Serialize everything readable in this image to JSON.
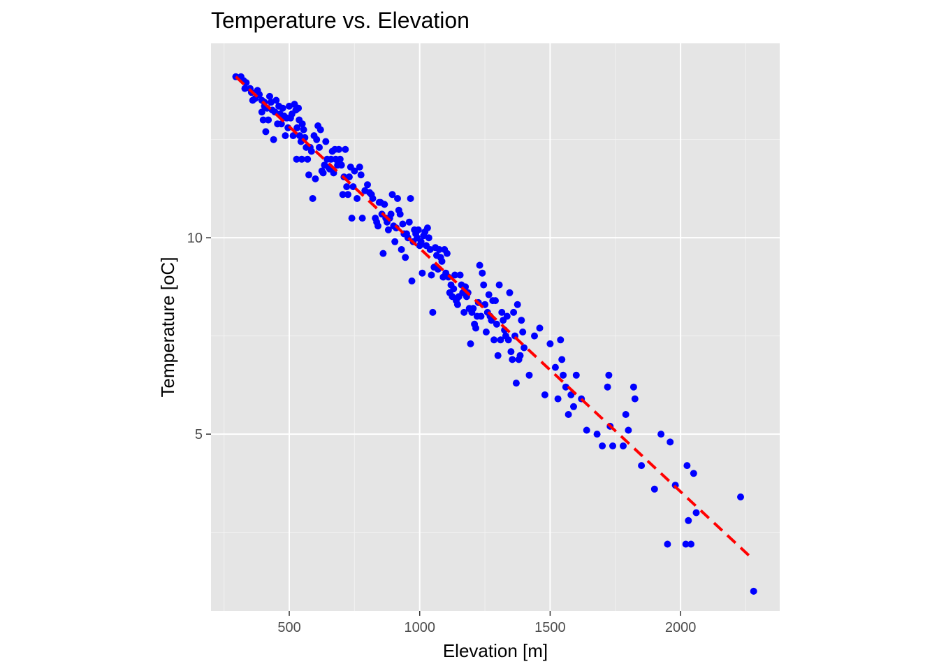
{
  "chart_data": {
    "type": "scatter",
    "title": "Temperature vs. Elevation",
    "xlabel": "Elevation [m]",
    "ylabel": "Temperature [oC]",
    "xlim": [
      200,
      2380
    ],
    "ylim": [
      0.5,
      14.95
    ],
    "x_ticks": [
      500,
      1000,
      1500,
      2000
    ],
    "x_tick_labels": [
      "500",
      "1000",
      "1500",
      "2000"
    ],
    "y_ticks": [
      5,
      10
    ],
    "y_tick_labels": [
      "5",
      "10"
    ],
    "grid": true,
    "panel_background": "#e5e5e5",
    "point_color": "#0000ff",
    "trend_line": {
      "color": "#ff0000",
      "style": "dashed",
      "x": [
        295,
        2280
      ],
      "y": [
        14.1,
        1.8
      ]
    },
    "points": [
      [
        295,
        14.1
      ],
      [
        315,
        14.1
      ],
      [
        325,
        14.0
      ],
      [
        330,
        13.8
      ],
      [
        335,
        13.95
      ],
      [
        350,
        13.8
      ],
      [
        355,
        13.7
      ],
      [
        360,
        13.5
      ],
      [
        370,
        13.55
      ],
      [
        378,
        13.75
      ],
      [
        385,
        13.65
      ],
      [
        395,
        13.5
      ],
      [
        395,
        13.2
      ],
      [
        400,
        13.0
      ],
      [
        405,
        13.45
      ],
      [
        405,
        13.35
      ],
      [
        410,
        12.7
      ],
      [
        415,
        13.3
      ],
      [
        420,
        13.0
      ],
      [
        425,
        13.6
      ],
      [
        430,
        13.45
      ],
      [
        435,
        13.25
      ],
      [
        440,
        12.5
      ],
      [
        445,
        13.2
      ],
      [
        450,
        13.5
      ],
      [
        455,
        12.9
      ],
      [
        460,
        13.35
      ],
      [
        465,
        13.15
      ],
      [
        470,
        12.9
      ],
      [
        475,
        13.3
      ],
      [
        480,
        13.1
      ],
      [
        485,
        12.6
      ],
      [
        490,
        13.05
      ],
      [
        495,
        12.8
      ],
      [
        500,
        13.35
      ],
      [
        505,
        13.05
      ],
      [
        510,
        13.15
      ],
      [
        515,
        12.6
      ],
      [
        520,
        13.4
      ],
      [
        525,
        13.25
      ],
      [
        528,
        12.0
      ],
      [
        530,
        12.8
      ],
      [
        535,
        13.3
      ],
      [
        538,
        13.0
      ],
      [
        540,
        12.6
      ],
      [
        545,
        12.45
      ],
      [
        548,
        12.0
      ],
      [
        550,
        12.9
      ],
      [
        555,
        12.75
      ],
      [
        560,
        12.55
      ],
      [
        565,
        12.3
      ],
      [
        570,
        12.0
      ],
      [
        575,
        11.6
      ],
      [
        580,
        12.3
      ],
      [
        585,
        12.2
      ],
      [
        590,
        11.0
      ],
      [
        595,
        12.6
      ],
      [
        600,
        11.5
      ],
      [
        605,
        12.5
      ],
      [
        610,
        12.85
      ],
      [
        615,
        12.3
      ],
      [
        620,
        12.75
      ],
      [
        625,
        11.7
      ],
      [
        630,
        11.65
      ],
      [
        635,
        11.85
      ],
      [
        640,
        12.45
      ],
      [
        645,
        12.0
      ],
      [
        650,
        11.8
      ],
      [
        655,
        11.75
      ],
      [
        660,
        12.0
      ],
      [
        665,
        12.2
      ],
      [
        670,
        11.65
      ],
      [
        675,
        12.25
      ],
      [
        678,
        12.0
      ],
      [
        685,
        11.85
      ],
      [
        690,
        12.25
      ],
      [
        695,
        12.0
      ],
      [
        700,
        11.85
      ],
      [
        705,
        11.1
      ],
      [
        710,
        11.55
      ],
      [
        715,
        12.25
      ],
      [
        720,
        11.3
      ],
      [
        725,
        11.1
      ],
      [
        730,
        11.55
      ],
      [
        735,
        11.8
      ],
      [
        740,
        10.5
      ],
      [
        745,
        11.3
      ],
      [
        750,
        11.7
      ],
      [
        760,
        11.0
      ],
      [
        770,
        11.8
      ],
      [
        775,
        11.6
      ],
      [
        780,
        10.5
      ],
      [
        790,
        11.2
      ],
      [
        800,
        11.35
      ],
      [
        808,
        11.15
      ],
      [
        815,
        11.1
      ],
      [
        820,
        11.0
      ],
      [
        830,
        10.5
      ],
      [
        835,
        10.4
      ],
      [
        840,
        10.3
      ],
      [
        845,
        10.9
      ],
      [
        850,
        10.9
      ],
      [
        855,
        10.6
      ],
      [
        860,
        9.6
      ],
      [
        865,
        10.85
      ],
      [
        870,
        10.5
      ],
      [
        875,
        10.4
      ],
      [
        880,
        10.2
      ],
      [
        885,
        10.5
      ],
      [
        890,
        10.6
      ],
      [
        895,
        11.1
      ],
      [
        900,
        10.3
      ],
      [
        905,
        9.9
      ],
      [
        910,
        10.25
      ],
      [
        915,
        11.0
      ],
      [
        920,
        10.7
      ],
      [
        925,
        10.6
      ],
      [
        930,
        9.7
      ],
      [
        935,
        10.35
      ],
      [
        940,
        10.1
      ],
      [
        945,
        9.5
      ],
      [
        950,
        10.1
      ],
      [
        955,
        10.0
      ],
      [
        960,
        10.4
      ],
      [
        965,
        11.0
      ],
      [
        970,
        8.9
      ],
      [
        975,
        9.9
      ],
      [
        980,
        10.2
      ],
      [
        985,
        10.1
      ],
      [
        990,
        10.0
      ],
      [
        995,
        10.2
      ],
      [
        1000,
        9.8
      ],
      [
        1005,
        9.9
      ],
      [
        1010,
        9.1
      ],
      [
        1015,
        10.05
      ],
      [
        1020,
        10.15
      ],
      [
        1025,
        9.8
      ],
      [
        1030,
        10.25
      ],
      [
        1035,
        10.0
      ],
      [
        1040,
        9.7
      ],
      [
        1045,
        9.05
      ],
      [
        1050,
        8.1
      ],
      [
        1055,
        9.25
      ],
      [
        1060,
        9.75
      ],
      [
        1065,
        9.55
      ],
      [
        1070,
        9.2
      ],
      [
        1075,
        9.7
      ],
      [
        1080,
        9.5
      ],
      [
        1085,
        9.4
      ],
      [
        1090,
        9.0
      ],
      [
        1095,
        9.7
      ],
      [
        1100,
        9.1
      ],
      [
        1105,
        9.6
      ],
      [
        1110,
        9.0
      ],
      [
        1115,
        8.6
      ],
      [
        1120,
        8.8
      ],
      [
        1125,
        8.5
      ],
      [
        1130,
        8.7
      ],
      [
        1135,
        9.05
      ],
      [
        1140,
        8.4
      ],
      [
        1145,
        8.3
      ],
      [
        1150,
        8.5
      ],
      [
        1155,
        9.05
      ],
      [
        1160,
        8.8
      ],
      [
        1165,
        8.6
      ],
      [
        1170,
        8.1
      ],
      [
        1175,
        8.75
      ],
      [
        1180,
        8.5
      ],
      [
        1185,
        8.6
      ],
      [
        1190,
        8.2
      ],
      [
        1195,
        7.3
      ],
      [
        1200,
        8.1
      ],
      [
        1205,
        8.2
      ],
      [
        1210,
        7.8
      ],
      [
        1215,
        7.7
      ],
      [
        1220,
        8.0
      ],
      [
        1225,
        8.35
      ],
      [
        1230,
        9.3
      ],
      [
        1235,
        8.0
      ],
      [
        1240,
        9.1
      ],
      [
        1245,
        8.8
      ],
      [
        1250,
        8.3
      ],
      [
        1255,
        7.6
      ],
      [
        1260,
        8.1
      ],
      [
        1265,
        8.55
      ],
      [
        1270,
        8.0
      ],
      [
        1275,
        7.9
      ],
      [
        1280,
        8.4
      ],
      [
        1285,
        7.4
      ],
      [
        1290,
        8.4
      ],
      [
        1295,
        7.8
      ],
      [
        1300,
        7.0
      ],
      [
        1305,
        8.8
      ],
      [
        1310,
        7.4
      ],
      [
        1315,
        8.1
      ],
      [
        1320,
        7.9
      ],
      [
        1325,
        7.65
      ],
      [
        1330,
        7.5
      ],
      [
        1335,
        8.0
      ],
      [
        1340,
        7.4
      ],
      [
        1345,
        8.6
      ],
      [
        1350,
        7.1
      ],
      [
        1355,
        6.9
      ],
      [
        1360,
        8.1
      ],
      [
        1365,
        7.5
      ],
      [
        1370,
        6.3
      ],
      [
        1375,
        8.3
      ],
      [
        1380,
        6.9
      ],
      [
        1385,
        7.0
      ],
      [
        1390,
        7.9
      ],
      [
        1395,
        7.6
      ],
      [
        1400,
        7.2
      ],
      [
        1420,
        6.5
      ],
      [
        1440,
        7.5
      ],
      [
        1460,
        7.7
      ],
      [
        1480,
        6.0
      ],
      [
        1500,
        7.3
      ],
      [
        1520,
        6.7
      ],
      [
        1530,
        5.9
      ],
      [
        1540,
        7.4
      ],
      [
        1545,
        6.9
      ],
      [
        1550,
        6.5
      ],
      [
        1560,
        6.2
      ],
      [
        1570,
        5.5
      ],
      [
        1580,
        6.0
      ],
      [
        1590,
        5.7
      ],
      [
        1600,
        6.5
      ],
      [
        1620,
        5.9
      ],
      [
        1640,
        5.1
      ],
      [
        1680,
        5.0
      ],
      [
        1700,
        4.7
      ],
      [
        1720,
        6.2
      ],
      [
        1725,
        6.5
      ],
      [
        1730,
        5.2
      ],
      [
        1740,
        4.7
      ],
      [
        1780,
        4.7
      ],
      [
        1790,
        5.5
      ],
      [
        1800,
        5.1
      ],
      [
        1820,
        6.2
      ],
      [
        1825,
        5.9
      ],
      [
        1850,
        4.2
      ],
      [
        1900,
        3.6
      ],
      [
        1925,
        5.0
      ],
      [
        1950,
        2.2
      ],
      [
        1960,
        4.8
      ],
      [
        1980,
        3.7
      ],
      [
        2020,
        2.2
      ],
      [
        2025,
        4.2
      ],
      [
        2030,
        2.8
      ],
      [
        2040,
        2.2
      ],
      [
        2050,
        4.0
      ],
      [
        2060,
        3.0
      ],
      [
        2230,
        3.4
      ],
      [
        2280,
        1.0
      ]
    ]
  }
}
